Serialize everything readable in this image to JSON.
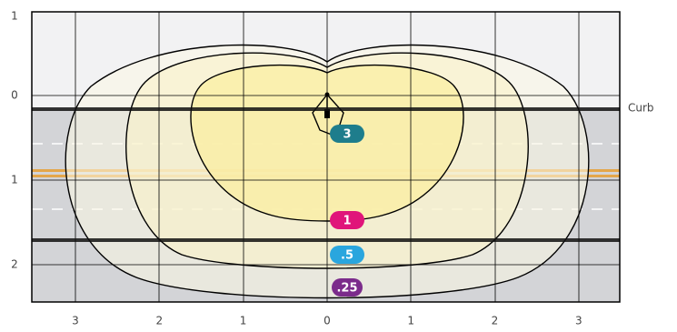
{
  "y_axis_labels": [
    "1",
    "0",
    "1",
    "2"
  ],
  "x_axis_labels": [
    "3",
    "2",
    "1",
    "0",
    "1",
    "2",
    "3"
  ],
  "curb_label": "Curb",
  "contours": [
    {
      "label": "3",
      "color": "#1e7d8c"
    },
    {
      "label": "1",
      "color": "#e0157a"
    },
    {
      "label": ".5",
      "color": "#2aa6de"
    },
    {
      "label": ".25",
      "color": "#7b2b8b"
    }
  ]
}
